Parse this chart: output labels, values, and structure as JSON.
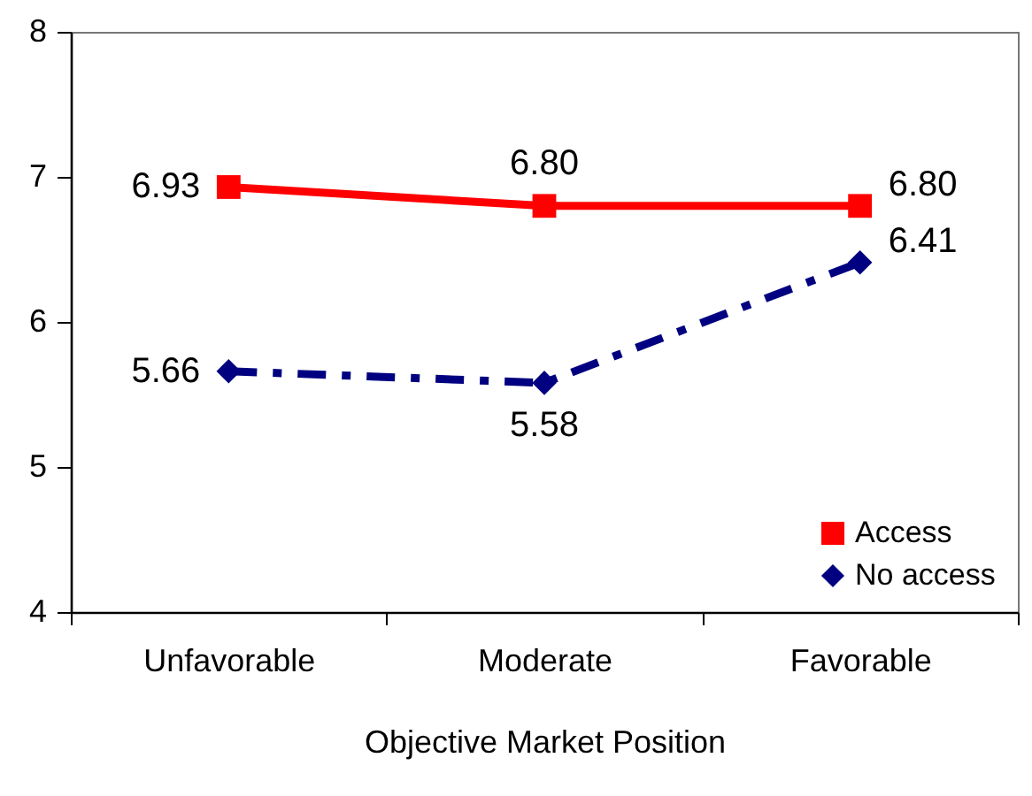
{
  "chart_data": {
    "type": "line",
    "xlabel": "Objective Market Position",
    "categories": [
      "Unfavorable",
      "Moderate",
      "Favorable"
    ],
    "series": [
      {
        "name": "Access",
        "color": "#ff0000",
        "marker": "square",
        "line_style": "solid",
        "values": [
          6.93,
          6.8,
          6.8
        ],
        "value_labels": [
          "6.93",
          "6.80",
          "6.80"
        ]
      },
      {
        "name": "No access",
        "color": "#000080",
        "marker": "diamond",
        "line_style": "dashed",
        "values": [
          5.66,
          5.58,
          6.41
        ],
        "value_labels": [
          "5.66",
          "5.58",
          "6.41"
        ]
      }
    ],
    "ylim": [
      4,
      8
    ],
    "yticks": [
      4,
      5,
      6,
      7,
      8
    ],
    "grid": false,
    "legend": "bottom right"
  }
}
